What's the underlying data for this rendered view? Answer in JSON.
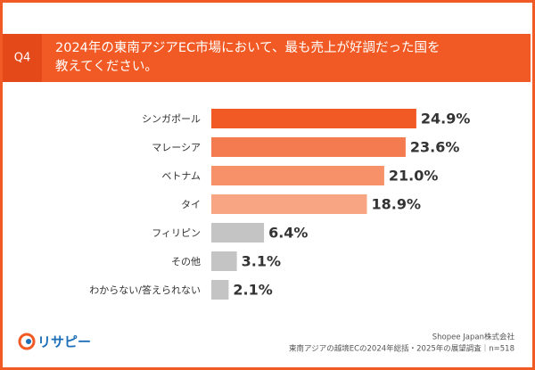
{
  "chart_data": {
    "type": "bar",
    "orientation": "horizontal",
    "question": "Q4",
    "title": [
      "2024年の東南アジアEC市場において、最も売上が好調だった国を",
      "教えてください。"
    ],
    "categories": [
      "シンガポール",
      "マレーシア",
      "ベトナム",
      "タイ",
      "フィリピン",
      "その他",
      "わからない/答えられない"
    ],
    "values": [
      24.9,
      23.6,
      21.0,
      18.9,
      6.4,
      3.1,
      2.1
    ],
    "value_labels": [
      "24.9%",
      "23.6%",
      "21.0%",
      "18.9%",
      "6.4%",
      "3.1%",
      "2.1%"
    ],
    "colors": [
      "#f15a24",
      "#f47b4f",
      "#f6916a",
      "#f8a584",
      "#c4c4c4",
      "#c4c4c4",
      "#c4c4c4"
    ],
    "xlim": [
      0,
      30
    ],
    "logo": "リサピー",
    "source": [
      "Shopee Japan株式会社",
      "東南アジアの越境ECの2024年総括・2025年の展望調査｜n=518"
    ]
  }
}
